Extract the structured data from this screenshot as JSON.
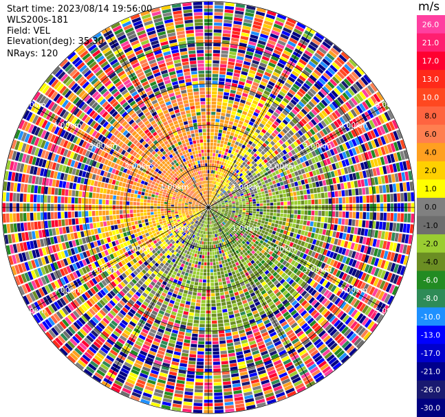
{
  "header": {
    "start_time": "Start time: 2023/08/14 19:56:00",
    "instrument": "WLS200s-181",
    "field": "Field: VEL",
    "elevation": "Elevation(deg): 35.30",
    "nrays": "NRays: 120"
  },
  "colorbar": {
    "unit": "m/s",
    "ticks": [
      "26.0",
      "21.0",
      "17.0",
      "13.0",
      "10.0",
      "8.0",
      "6.0",
      "4.0",
      "2.0",
      "1.0",
      "0.0",
      "-1.0",
      "-2.0",
      "-4.0",
      "-6.0",
      "-8.0",
      "-10.0",
      "-13.0",
      "-17.0",
      "-21.0",
      "-26.0",
      "-30.0"
    ],
    "colors": [
      "#ff3fa0",
      "#ff1f70",
      "#ff0030",
      "#ff2a1a",
      "#ff4820",
      "#ff6440",
      "#ff7f50",
      "#ffa020",
      "#ffd000",
      "#ffff00",
      "#808080",
      "#6e6e6e",
      "#9acd32",
      "#6b8e23",
      "#228b22",
      "#2e8b57",
      "#1e90ff",
      "#0000ff",
      "#0000cd",
      "#00008b",
      "#191970",
      "#000080"
    ]
  },
  "chart_data": {
    "type": "heatmap",
    "projection": "polar PPI",
    "field": "VEL",
    "nrays": 120,
    "range_rings_km": [
      "1.00km",
      "2.00km",
      "3.00km",
      "4.00km",
      "5.00km"
    ],
    "sector_description": {
      "northwest_near": "positive velocities ~2 to 8 m/s (yellow/orange)",
      "southeast_near": "negative velocities ~-1 to -6 m/s (grey/green)",
      "far_range": "noisy, mixed colors across full scale"
    }
  }
}
